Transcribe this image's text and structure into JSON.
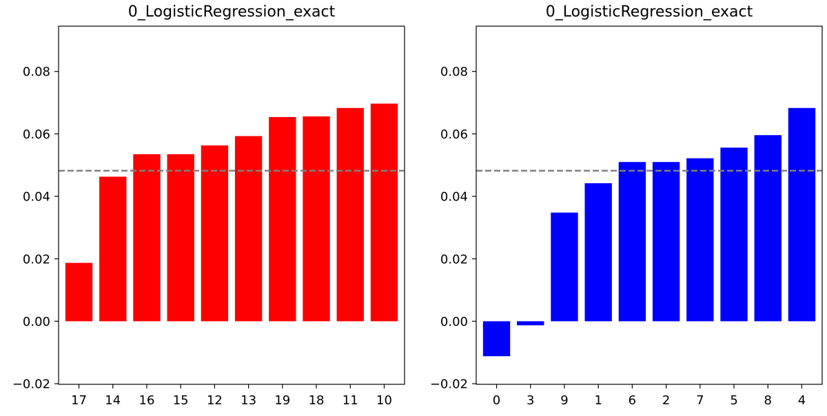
{
  "chart_data": [
    {
      "type": "bar",
      "title": "0_LogisticRegression_exact",
      "categories": [
        "17",
        "14",
        "16",
        "15",
        "12",
        "13",
        "19",
        "18",
        "11",
        "10"
      ],
      "values": [
        0.0187,
        0.0463,
        0.0535,
        0.0535,
        0.0563,
        0.0593,
        0.0654,
        0.0656,
        0.0683,
        0.0697
      ],
      "color": "#ff0000",
      "reference_line": {
        "value": 0.0482,
        "style": "dashed",
        "color": "#808080"
      },
      "ylim": [
        -0.0202,
        0.0945
      ],
      "yticks": [
        "−0.02",
        "0.00",
        "0.02",
        "0.04",
        "0.06",
        "0.08"
      ],
      "ytick_values": [
        -0.02,
        0.0,
        0.02,
        0.04,
        0.06,
        0.08
      ],
      "xlabel": "",
      "ylabel": ""
    },
    {
      "type": "bar",
      "title": "0_LogisticRegression_exact",
      "categories": [
        "0",
        "3",
        "9",
        "1",
        "6",
        "2",
        "7",
        "5",
        "8",
        "4"
      ],
      "values": [
        -0.0112,
        -0.0013,
        0.0348,
        0.0442,
        0.051,
        0.051,
        0.0522,
        0.0556,
        0.0596,
        0.0683
      ],
      "color": "#0000ff",
      "reference_line": {
        "value": 0.0482,
        "style": "dashed",
        "color": "#808080"
      },
      "ylim": [
        -0.0202,
        0.0945
      ],
      "yticks": [
        "−0.02",
        "0.00",
        "0.02",
        "0.04",
        "0.06",
        "0.08"
      ],
      "ytick_values": [
        -0.02,
        0.0,
        0.02,
        0.04,
        0.06,
        0.08
      ],
      "xlabel": "",
      "ylabel": ""
    }
  ]
}
